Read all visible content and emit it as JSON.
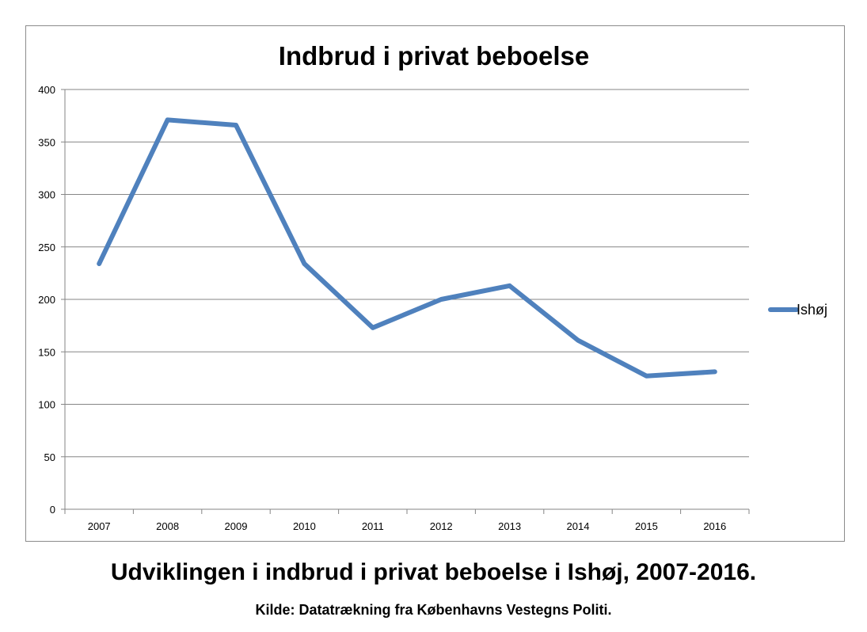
{
  "chart_data": {
    "type": "line",
    "title": "Indbrud i privat beboelse",
    "xlabel": "",
    "ylabel": "",
    "categories": [
      "2007",
      "2008",
      "2009",
      "2010",
      "2011",
      "2012",
      "2013",
      "2014",
      "2015",
      "2016"
    ],
    "series": [
      {
        "name": "Ishøj",
        "color": "#4f81bd",
        "values": [
          234,
          371,
          366,
          234,
          173,
          200,
          213,
          161,
          127,
          131
        ]
      }
    ],
    "ylim": [
      0,
      400
    ],
    "yticks": [
      0,
      50,
      100,
      150,
      200,
      250,
      300,
      350,
      400
    ],
    "grid": true,
    "legend_position": "right"
  },
  "caption": {
    "main": "Udviklingen i indbrud i privat beboelse i Ishøj, 2007-2016.",
    "source": "Kilde: Datatrækning fra Københavns Vestegns Politi."
  }
}
